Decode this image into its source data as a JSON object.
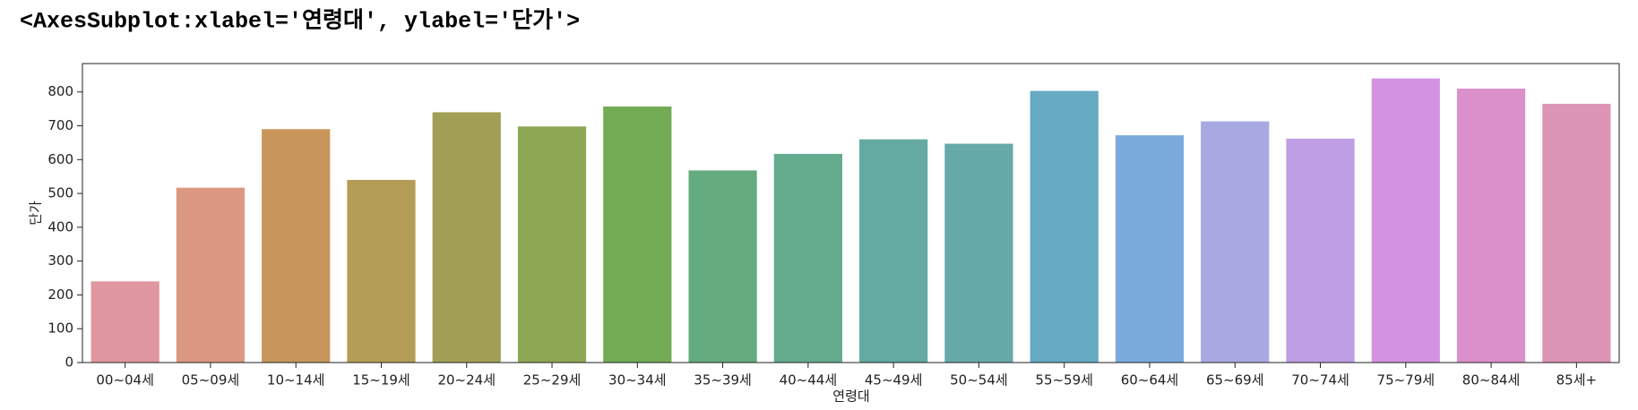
{
  "header": {
    "text": "<AxesSubplot:xlabel='연령대', ylabel='단가'>"
  },
  "chart_data": {
    "type": "bar",
    "xlabel": "연령대",
    "ylabel": "단가",
    "categories": [
      "00~04세",
      "05~09세",
      "10~14세",
      "15~19세",
      "20~24세",
      "25~29세",
      "30~34세",
      "35~39세",
      "40~44세",
      "45~49세",
      "50~54세",
      "55~59세",
      "60~64세",
      "65~69세",
      "70~74세",
      "75~79세",
      "80~84세",
      "85세+"
    ],
    "values": [
      240,
      517,
      690,
      540,
      740,
      698,
      757,
      568,
      617,
      660,
      647,
      803,
      672,
      713,
      662,
      840,
      810,
      765
    ],
    "colors": [
      "#e0979f",
      "#dc9780",
      "#c8965a",
      "#b39d57",
      "#a19f55",
      "#8ea755",
      "#74ab55",
      "#65ab80",
      "#65ab8e",
      "#64aaa0",
      "#65a9a8",
      "#66aac4",
      "#7aaadc",
      "#a8a9e3",
      "#be9ee5",
      "#d393e1",
      "#dc90cb",
      "#dc95b6"
    ],
    "ylim": [
      0,
      884
    ],
    "yticks": [
      0,
      100,
      200,
      300,
      400,
      500,
      600,
      700,
      800
    ]
  }
}
